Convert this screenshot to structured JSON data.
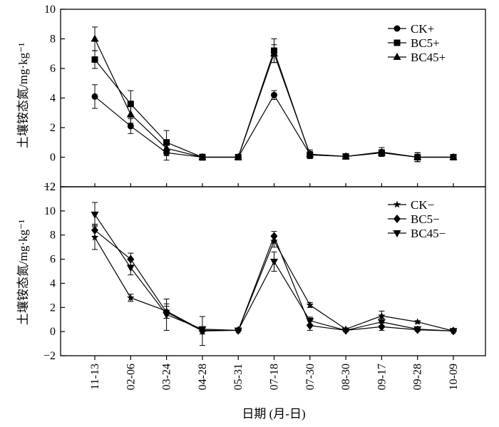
{
  "chart_data": [
    {
      "type": "line",
      "panel": "top",
      "xlabel": "",
      "ylabel": "土壤铵态氮/mg·kg⁻¹",
      "ylim": [
        -2,
        10
      ],
      "yticks": [
        -2,
        0,
        2,
        4,
        6,
        8,
        10
      ],
      "ytick_labels": [
        "−2",
        "0",
        "2",
        "4",
        "6",
        "8",
        "10"
      ],
      "categories": [
        "11-13",
        "02-06",
        "03-24",
        "04-28",
        "05-31",
        "07-18",
        "07-30",
        "08-30",
        "09-17",
        "09-28",
        "10-09"
      ],
      "legend_position": "top-right",
      "series": [
        {
          "name": "CK+",
          "marker": "circle",
          "values": [
            4.1,
            2.1,
            0.3,
            0.0,
            0.0,
            4.2,
            0.2,
            0.05,
            0.35,
            0.0,
            0.0
          ],
          "errors": [
            0.8,
            0.5,
            0.5,
            0.2,
            0.0,
            0.3,
            0.3,
            0.1,
            0.3,
            0.3,
            0.1
          ]
        },
        {
          "name": "BC5+",
          "marker": "square",
          "values": [
            6.6,
            3.6,
            1.0,
            0.0,
            0.0,
            7.2,
            0.15,
            0.05,
            0.3,
            0.0,
            0.0
          ],
          "errors": [
            0.6,
            0.9,
            0.8,
            0.2,
            0.0,
            0.8,
            0.2,
            0.1,
            0.2,
            0.3,
            0.1
          ]
        },
        {
          "name": "BC45+",
          "marker": "triangle-up",
          "values": [
            8.0,
            2.9,
            0.6,
            0.0,
            0.0,
            7.0,
            0.2,
            0.05,
            0.3,
            0.0,
            0.0
          ],
          "errors": [
            0.8,
            0.6,
            0.5,
            0.2,
            0.0,
            0.6,
            0.2,
            0.1,
            0.2,
            0.3,
            0.1
          ]
        }
      ]
    },
    {
      "type": "line",
      "panel": "bottom",
      "xlabel": "日期 (月-日)",
      "ylabel": "土壤铵态氮/mg·kg⁻¹",
      "ylim": [
        -2,
        12
      ],
      "yticks": [
        -2,
        0,
        2,
        4,
        6,
        8,
        10,
        12
      ],
      "ytick_labels": [
        "−2",
        "0",
        "2",
        "4",
        "6",
        "8",
        "10",
        "12"
      ],
      "categories": [
        "11-13",
        "02-06",
        "03-24",
        "04-28",
        "05-31",
        "07-18",
        "07-30",
        "08-30",
        "09-17",
        "09-28",
        "10-09"
      ],
      "legend_position": "top-right",
      "series": [
        {
          "name": "CK−",
          "marker": "star",
          "values": [
            7.8,
            2.8,
            1.7,
            0.1,
            0.1,
            7.5,
            2.2,
            0.2,
            1.3,
            0.8,
            0.05
          ],
          "errors": [
            1.0,
            0.3,
            0.6,
            0.3,
            0.0,
            0.5,
            0.2,
            0.1,
            0.4,
            0.1,
            0.05
          ]
        },
        {
          "name": "BC5−",
          "marker": "diamond",
          "values": [
            8.4,
            6.0,
            1.6,
            0.05,
            0.1,
            7.9,
            0.5,
            0.1,
            0.4,
            0.15,
            0.05
          ],
          "errors": [
            0.5,
            0.5,
            0.5,
            1.2,
            0.0,
            0.4,
            0.4,
            0.1,
            0.3,
            0.1,
            0.05
          ]
        },
        {
          "name": "BC45−",
          "marker": "triangle-down",
          "values": [
            9.7,
            5.3,
            1.4,
            0.2,
            0.1,
            5.8,
            0.9,
            0.1,
            0.8,
            0.2,
            0.05
          ],
          "errors": [
            1.0,
            0.6,
            1.3,
            0.2,
            0.0,
            0.8,
            0.3,
            0.1,
            0.3,
            0.1,
            0.05
          ]
        }
      ]
    }
  ]
}
